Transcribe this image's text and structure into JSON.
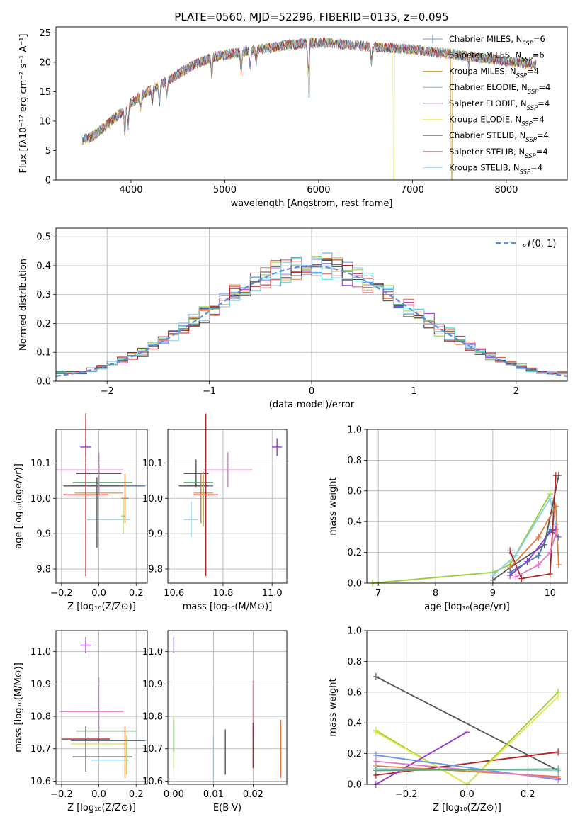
{
  "figure": {
    "title": "PLATE=0560, MJD=52296, FIBERID=0135, z=0.095"
  },
  "chart_data": [
    {
      "id": "spectrum",
      "type": "line",
      "xlabel": "wavelength [Angstrom, rest frame]",
      "ylabel": "Flux [fλ10⁻¹⁷ erg cm⁻² s⁻¹ A⁻¹]",
      "xlim": [
        3200,
        8650
      ],
      "ylim": [
        0,
        26
      ],
      "xticks": [
        4000,
        5000,
        6000,
        7000,
        8000
      ],
      "yticks": [
        0,
        5,
        10,
        15,
        20,
        25
      ],
      "grid": false,
      "legend_position": "top-right",
      "continuum_x": [
        3480,
        3600,
        3750,
        3900,
        4000,
        4150,
        4300,
        4500,
        4700,
        4900,
        5100,
        5300,
        5500,
        5700,
        5900,
        6100,
        6300,
        6500,
        6700,
        6900,
        7100,
        7300,
        7500,
        7700,
        7900,
        8100,
        8300
      ],
      "continuum_y": [
        6.8,
        7.5,
        9.5,
        11.5,
        13.0,
        14.8,
        16.0,
        18.0,
        19.8,
        21.0,
        21.5,
        22.0,
        22.5,
        23.0,
        23.3,
        23.3,
        23.0,
        22.7,
        22.5,
        22.3,
        22.0,
        21.6,
        21.2,
        20.8,
        20.4,
        20.0,
        19.6
      ],
      "series": [
        {
          "name": "Chabrier MILES, N_SSP=6",
          "color": "#4c72b0"
        },
        {
          "name": "Salpeter MILES, N_SSP=6",
          "color": "#c44e52"
        },
        {
          "name": "Kroupa MILES, N_SSP=4",
          "color": "#b8860b"
        },
        {
          "name": "Chabrier ELODIE, N_SSP=4",
          "color": "#55a868"
        },
        {
          "name": "Salpeter ELODIE, N_SSP=4",
          "color": "#9932cc"
        },
        {
          "name": "Kroupa ELODIE, N_SSP=4",
          "color": "#e6e64c"
        },
        {
          "name": "Chabrier STELIB, N_SSP=4",
          "color": "#555555"
        },
        {
          "name": "Salpeter STELIB, N_SSP=4",
          "color": "#b22222"
        },
        {
          "name": "Kroupa STELIB, N_SSP=4",
          "color": "#87cefa"
        }
      ]
    },
    {
      "id": "residuals",
      "type": "histogram",
      "xlabel": "(data-model)/error",
      "ylabel": "Normed distribution",
      "xlim": [
        -2.5,
        2.5
      ],
      "ylim": [
        0,
        0.53
      ],
      "xticks": [
        -2,
        -1,
        0,
        1,
        2
      ],
      "yticks": [
        0.0,
        0.1,
        0.2,
        0.3,
        0.4,
        0.5
      ],
      "grid": true,
      "legend_position": "top-right",
      "reference_label": "𝒩(0, 1)",
      "bin_width": 0.1,
      "series_colors": [
        "#6495ed",
        "#e07b39",
        "#9932cc",
        "#9acd32",
        "#cd5c5c",
        "#40e0d0",
        "#444444",
        "#b22222",
        "#87ceeb"
      ]
    },
    {
      "id": "age_vs_Z",
      "type": "errorbar",
      "xlabel": "Z [log₁₀(Z/Z⊙)]",
      "ylabel": "age  [log₁₀(age/yr)]",
      "xlim": [
        -0.23,
        0.26
      ],
      "ylim": [
        9.76,
        10.195
      ],
      "xticks": [
        -0.2,
        0.0,
        0.2
      ],
      "yticks": [
        9.8,
        9.9,
        10.0,
        10.1
      ],
      "points": [
        {
          "x": -0.07,
          "y": 10.145,
          "xerr": 0.03,
          "yerr": 0.025,
          "color": "#9932cc"
        },
        {
          "x": -0.05,
          "y": 10.08,
          "xerr": 0.18,
          "yerr": 0.0,
          "color": "#e377c2"
        },
        {
          "x": 0.0,
          "y": 10.07,
          "xerr": 0.12,
          "yerr": 0.055,
          "color": "#555555"
        },
        {
          "x": 0.02,
          "y": 10.045,
          "xerr": 0.16,
          "yerr": 0.0,
          "color": "#55a868"
        },
        {
          "x": 0.05,
          "y": 10.035,
          "xerr": 0.2,
          "yerr": 0.0,
          "color": "#4c72b0"
        },
        {
          "x": -0.03,
          "y": 10.035,
          "xerr": 0.16,
          "yerr": 0.0,
          "color": "#555555"
        },
        {
          "x": 0.0,
          "y": 10.015,
          "xerr": 0.13,
          "yerr": 0.0,
          "color": "#e6a03c"
        },
        {
          "x": -0.07,
          "y": 10.01,
          "xerr": 0.12,
          "yerr": 0.23,
          "color": "#b22222"
        },
        {
          "x": 0.14,
          "y": 10.0,
          "xerr": 0.02,
          "yerr": 0.07,
          "color": "#e07b39"
        },
        {
          "x": 0.13,
          "y": 9.95,
          "xerr": 0.01,
          "yerr": 0.05,
          "color": "#9acd32"
        },
        {
          "x": 0.05,
          "y": 9.94,
          "xerr": 0.12,
          "yerr": 0.0,
          "color": "#87ceeb"
        },
        {
          "x": -0.01,
          "y": 9.96,
          "xerr": 0.0,
          "yerr": 0.1,
          "color": "#555555"
        },
        {
          "x": 0.0,
          "y": 10.07,
          "xerr": 0.0,
          "yerr": 0.06,
          "color": "#e377c2"
        }
      ]
    },
    {
      "id": "age_vs_mass",
      "type": "errorbar",
      "xlabel": "mass [log₁₀(M/M⊙)]",
      "ylabel": "",
      "xlim": [
        10.575,
        11.06
      ],
      "ylim": [
        9.76,
        10.195
      ],
      "xticks": [
        10.6,
        10.8,
        11.0
      ],
      "yticks": [
        9.8,
        9.9,
        10.0,
        10.1
      ],
      "points": [
        {
          "x": 11.02,
          "y": 10.145,
          "xerr": 0.02,
          "yerr": 0.025,
          "color": "#9932cc"
        },
        {
          "x": 10.82,
          "y": 10.08,
          "xerr": 0.1,
          "yerr": 0.05,
          "color": "#e377c2"
        },
        {
          "x": 10.69,
          "y": 10.07,
          "xerr": 0.05,
          "yerr": 0.04,
          "color": "#555555"
        },
        {
          "x": 10.7,
          "y": 10.045,
          "xerr": 0.06,
          "yerr": 0.0,
          "color": "#55a868"
        },
        {
          "x": 10.7,
          "y": 10.035,
          "xerr": 0.06,
          "yerr": 0.0,
          "color": "#4c72b0"
        },
        {
          "x": 10.68,
          "y": 10.035,
          "xerr": 0.06,
          "yerr": 0.0,
          "color": "#555555"
        },
        {
          "x": 10.72,
          "y": 10.015,
          "xerr": 0.04,
          "yerr": 0.06,
          "color": "#e6a03c"
        },
        {
          "x": 10.73,
          "y": 10.01,
          "xerr": 0.05,
          "yerr": 0.23,
          "color": "#b22222"
        },
        {
          "x": 10.72,
          "y": 9.98,
          "xerr": 0.0,
          "yerr": 0.06,
          "color": "#9acd32"
        },
        {
          "x": 10.67,
          "y": 9.94,
          "xerr": 0.03,
          "yerr": 0.05,
          "color": "#87ceeb"
        },
        {
          "x": 10.71,
          "y": 10.0,
          "xerr": 0.0,
          "yerr": 0.07,
          "color": "#e07b39"
        }
      ]
    },
    {
      "id": "mass_weight_vs_age",
      "type": "line",
      "xlabel": "age  [log₁₀(age/yr)]",
      "ylabel": "mass weight",
      "xlim": [
        6.8,
        10.3
      ],
      "ylim": [
        0,
        1.0
      ],
      "xticks": [
        7,
        8,
        9,
        10
      ],
      "yticks": [
        0.0,
        0.2,
        0.4,
        0.6,
        0.8,
        1.0
      ],
      "grid": true,
      "series": [
        {
          "color": "#9acd32",
          "x": [
            6.9,
            9.0,
            9.3,
            10.0
          ],
          "y": [
            0.0,
            0.07,
            0.12,
            0.58
          ]
        },
        {
          "color": "#87ceeb",
          "x": [
            9.0,
            9.4,
            10.0,
            10.1
          ],
          "y": [
            0.05,
            0.18,
            0.55,
            0.38
          ]
        },
        {
          "color": "#555555",
          "x": [
            9.0,
            9.3,
            9.9,
            10.15
          ],
          "y": [
            0.02,
            0.1,
            0.25,
            0.7
          ]
        },
        {
          "color": "#9932cc",
          "x": [
            9.3,
            9.6,
            10.0,
            10.1
          ],
          "y": [
            0.05,
            0.14,
            0.33,
            0.35
          ]
        },
        {
          "color": "#b22222",
          "x": [
            9.3,
            9.5,
            10.0,
            10.1
          ],
          "y": [
            0.21,
            0.03,
            0.06,
            0.7
          ]
        },
        {
          "color": "#e07b39",
          "x": [
            9.3,
            9.8,
            10.1,
            10.15
          ],
          "y": [
            0.1,
            0.3,
            0.5,
            0.12
          ]
        },
        {
          "color": "#4c72b0",
          "x": [
            9.3,
            9.8,
            10.0,
            10.15
          ],
          "y": [
            0.07,
            0.18,
            0.35,
            0.3
          ]
        },
        {
          "color": "#e377c2",
          "x": [
            9.4,
            9.8,
            10.0,
            10.1
          ],
          "y": [
            0.04,
            0.12,
            0.2,
            0.32
          ]
        }
      ]
    },
    {
      "id": "mass_vs_Z",
      "type": "errorbar",
      "xlabel": "Z [log₁₀(Z/Z⊙)]",
      "ylabel": "mass [log₁₀(M/M⊙)]",
      "xlim": [
        -0.23,
        0.26
      ],
      "ylim": [
        10.59,
        11.065
      ],
      "xticks": [
        -0.2,
        0.0,
        0.2
      ],
      "yticks": [
        10.6,
        10.7,
        10.8,
        10.9,
        11.0
      ],
      "points": [
        {
          "x": -0.07,
          "y": 11.02,
          "xerr": 0.03,
          "yerr": 0.025,
          "color": "#9932cc"
        },
        {
          "x": -0.04,
          "y": 10.815,
          "xerr": 0.17,
          "yerr": 0.0,
          "color": "#e377c2"
        },
        {
          "x": 0.0,
          "y": 10.82,
          "xerr": 0.0,
          "yerr": 0.1,
          "color": "#e377c2"
        },
        {
          "x": 0.04,
          "y": 10.755,
          "xerr": 0.16,
          "yerr": 0.0,
          "color": "#55a868"
        },
        {
          "x": -0.07,
          "y": 10.73,
          "xerr": 0.13,
          "yerr": 0.0,
          "color": "#b22222"
        },
        {
          "x": 0.05,
          "y": 10.725,
          "xerr": 0.2,
          "yerr": 0.0,
          "color": "#4c72b0"
        },
        {
          "x": 0.0,
          "y": 10.715,
          "xerr": 0.15,
          "yerr": 0.0,
          "color": "#e6e64c"
        },
        {
          "x": 0.02,
          "y": 10.675,
          "xerr": 0.16,
          "yerr": 0.0,
          "color": "#555555"
        },
        {
          "x": 0.06,
          "y": 10.665,
          "xerr": 0.1,
          "yerr": 0.0,
          "color": "#87ceeb"
        },
        {
          "x": -0.07,
          "y": 10.7,
          "xerr": 0.0,
          "yerr": 0.07,
          "color": "#555555"
        },
        {
          "x": 0.14,
          "y": 10.69,
          "xerr": 0.0,
          "yerr": 0.08,
          "color": "#e07b39"
        },
        {
          "x": 0.15,
          "y": 10.68,
          "xerr": 0.0,
          "yerr": 0.06,
          "color": "#9acd32"
        }
      ]
    },
    {
      "id": "mass_vs_ebv",
      "type": "errorbar",
      "xlabel": "E(B-V)",
      "ylabel": "",
      "xlim": [
        -0.0015,
        0.0285
      ],
      "ylim": [
        10.59,
        11.065
      ],
      "xticks": [
        0.0,
        0.01,
        0.02
      ],
      "yticks": [
        10.6,
        10.7,
        10.8,
        10.9,
        11.0
      ],
      "points": [
        {
          "x": 0.0,
          "y": 11.02,
          "xerr": 0.0,
          "yerr": 0.025,
          "color": "#9932cc"
        },
        {
          "x": 0.0,
          "y": 10.72,
          "xerr": 0.0,
          "yerr": 0.08,
          "color": "#9acd32"
        },
        {
          "x": 0.0,
          "y": 10.74,
          "xerr": 0.0,
          "yerr": 0.05,
          "color": "#55a868"
        },
        {
          "x": 0.01,
          "y": 10.665,
          "xerr": 0.0,
          "yerr": 0.075,
          "color": "#87ceeb"
        },
        {
          "x": 0.013,
          "y": 10.69,
          "xerr": 0.0,
          "yerr": 0.07,
          "color": "#555555"
        },
        {
          "x": 0.02,
          "y": 10.82,
          "xerr": 0.0,
          "yerr": 0.09,
          "color": "#e377c2"
        },
        {
          "x": 0.02,
          "y": 10.71,
          "xerr": 0.0,
          "yerr": 0.07,
          "color": "#b22222"
        },
        {
          "x": 0.027,
          "y": 10.7,
          "xerr": 0.0,
          "yerr": 0.09,
          "color": "#e07b39"
        }
      ]
    },
    {
      "id": "mass_weight_vs_Z",
      "type": "line",
      "xlabel": "Z [log₁₀(Z/Z⊙)]",
      "ylabel": "mass weight",
      "xlim": [
        -0.33,
        0.33
      ],
      "ylim": [
        0,
        1.0
      ],
      "xticks": [
        -0.2,
        0.0,
        0.2
      ],
      "yticks": [
        0.0,
        0.2,
        0.4,
        0.6,
        0.8,
        1.0
      ],
      "grid": true,
      "series": [
        {
          "color": "#555555",
          "x": [
            -0.3,
            0.3
          ],
          "y": [
            0.7,
            0.09
          ]
        },
        {
          "color": "#b22222",
          "x": [
            -0.3,
            0.3
          ],
          "y": [
            0.06,
            0.21
          ]
        },
        {
          "color": "#9acd32",
          "x": [
            -0.3,
            0.0,
            0.3
          ],
          "y": [
            0.35,
            0.0,
            0.6
          ]
        },
        {
          "color": "#e6e64c",
          "x": [
            -0.3,
            0.0,
            0.3
          ],
          "y": [
            0.34,
            0.0,
            0.57
          ]
        },
        {
          "color": "#9932cc",
          "x": [
            -0.3,
            0.0
          ],
          "y": [
            0.0,
            0.34
          ]
        },
        {
          "color": "#6495ed",
          "x": [
            -0.3,
            0.3
          ],
          "y": [
            0.19,
            0.03
          ]
        },
        {
          "color": "#e07b39",
          "x": [
            -0.3,
            0.3
          ],
          "y": [
            0.12,
            0.05
          ]
        },
        {
          "color": "#e377c2",
          "x": [
            -0.3,
            0.3
          ],
          "y": [
            0.15,
            0.04
          ]
        },
        {
          "color": "#87ceeb",
          "x": [
            -0.3,
            0.3
          ],
          "y": [
            0.1,
            0.09
          ]
        },
        {
          "color": "#55a868",
          "x": [
            -0.3,
            0.3
          ],
          "y": [
            0.09,
            0.1
          ]
        }
      ]
    }
  ]
}
